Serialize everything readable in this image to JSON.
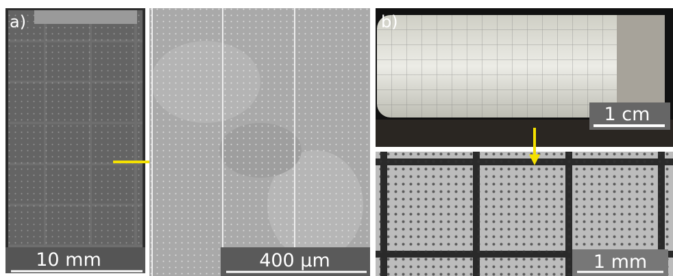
{
  "panels": [
    {
      "label": "a)",
      "scale_bars": [
        "10 mm",
        "400 µm"
      ]
    },
    {
      "label": "b)",
      "scale_bars": [
        "1 cm",
        "1 mm"
      ]
    }
  ]
}
